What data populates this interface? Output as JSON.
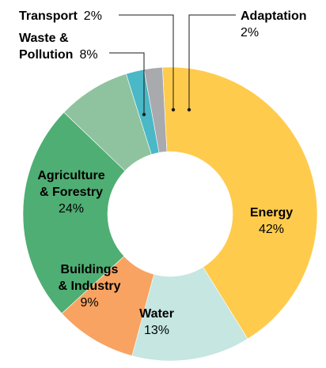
{
  "chart_data": {
    "type": "pie",
    "donut": true,
    "title": "",
    "legend": "none",
    "categories": [
      "Energy",
      "Water",
      "Buildings & Industry",
      "Agriculture & Forestry",
      "Waste & Pollution",
      "Transport",
      "Adaptation"
    ],
    "values": [
      42,
      13,
      9,
      24,
      8,
      2,
      2
    ],
    "colors": [
      "#ffcb4d",
      "#c5e6e1",
      "#f8a362",
      "#4fae73",
      "#8fc39f",
      "#4ab8c6",
      "#a8aaae"
    ],
    "labels": {
      "energy": {
        "name": "Energy",
        "pct": "42%"
      },
      "water": {
        "name": "Water",
        "pct": "13%"
      },
      "buildings": {
        "name_line1": "Buildings",
        "name_line2": "& Industry",
        "pct": "9%"
      },
      "agriculture": {
        "name_line1": "Agriculture",
        "name_line2": "& Forestry",
        "pct": "24%"
      },
      "waste": {
        "name_line1": "Waste &",
        "name_line2": "Pollution",
        "pct": "8%"
      },
      "transport": {
        "name": "Transport",
        "pct": "2%"
      },
      "adaptation": {
        "name": "Adaptation",
        "pct": "2%"
      }
    }
  }
}
